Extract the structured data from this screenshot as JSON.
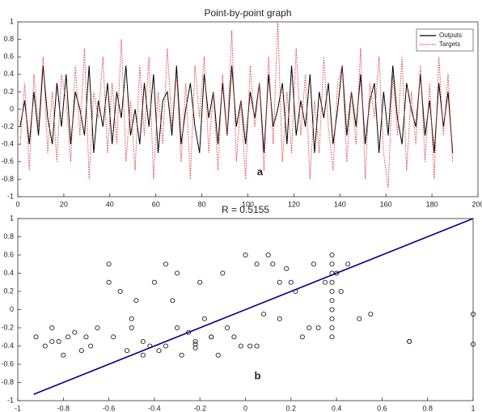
{
  "chart_data": [
    {
      "type": "line",
      "title": "Point-by-point graph",
      "x": [
        1,
        3,
        5,
        7,
        9,
        11,
        13,
        15,
        17,
        19,
        21,
        23,
        25,
        27,
        29,
        31,
        33,
        35,
        37,
        39,
        41,
        43,
        45,
        47,
        49,
        51,
        53,
        55,
        57,
        59,
        61,
        63,
        65,
        67,
        69,
        71,
        73,
        75,
        77,
        79,
        81,
        83,
        85,
        87,
        89,
        91,
        93,
        95,
        97,
        99,
        101,
        103,
        105,
        107,
        109,
        111,
        113,
        115,
        117,
        119,
        121,
        123,
        125,
        127,
        129,
        131,
        133,
        135,
        137,
        139,
        141,
        143,
        145,
        147,
        149,
        151,
        153,
        155,
        157,
        159,
        161,
        163,
        165,
        167,
        169,
        171,
        173,
        175,
        177,
        179,
        181,
        183,
        185,
        187,
        189
      ],
      "series": [
        {
          "name": "Outputs",
          "color": "#000000",
          "dash": "none",
          "values": [
            -0.2,
            0.1,
            -0.4,
            0.2,
            -0.3,
            0.5,
            -0.1,
            -0.4,
            0.3,
            -0.2,
            0.4,
            -0.4,
            0.2,
            0,
            -0.3,
            0.5,
            -0.5,
            0.1,
            -0.2,
            0.3,
            -0.4,
            0.2,
            -0.1,
            0.5,
            -0.3,
            0,
            -0.4,
            0.3,
            -0.2,
            0.4,
            -0.5,
            0.1,
            0.2,
            -0.3,
            0.5,
            -0.4,
            0,
            0.3,
            -0.2,
            -0.5,
            0.4,
            -0.1,
            0.2,
            -0.4,
            0.3,
            -0.3,
            0.5,
            -0.2,
            0.1,
            -0.4,
            0.2,
            -0.1,
            0.3,
            -0.5,
            0.4,
            -0.2,
            0,
            0.3,
            -0.4,
            0.5,
            -0.3,
            0.1,
            -0.2,
            0.4,
            -0.5,
            0.2,
            -0.1,
            0.3,
            -0.4,
            0,
            0.5,
            -0.3,
            0.2,
            -0.2,
            0.4,
            -0.4,
            0.1,
            0.3,
            -0.5,
            0.2,
            -0.3,
            0.5,
            -0.1,
            -0.4,
            0.3,
            0,
            -0.2,
            0.4,
            -0.3,
            0.1,
            -0.5,
            0.3,
            -0.2,
            0.2,
            -0.5
          ]
        },
        {
          "name": "Targets",
          "color": "#e04040",
          "dash": "1.5 1.5",
          "values": [
            -0.4,
            0.3,
            -0.7,
            0.4,
            -0.2,
            0.6,
            -0.5,
            0.2,
            -0.6,
            0.4,
            0.1,
            -0.6,
            0.5,
            -0.3,
            0.7,
            -0.8,
            0.2,
            -0.1,
            0.6,
            -0.5,
            0.3,
            -0.4,
            0.8,
            -0.6,
            0.1,
            -0.7,
            0.5,
            -0.3,
            0.6,
            -0.8,
            0.2,
            -0.4,
            0.7,
            -0.2,
            0.4,
            -0.6,
            0.3,
            -0.8,
            0.5,
            -0.1,
            0.6,
            -0.5,
            0.2,
            -0.7,
            0.4,
            -0.3,
            0.9,
            -0.6,
            0.1,
            -0.8,
            0.5,
            -0.2,
            0.3,
            -0.7,
            0.6,
            -0.4,
            1,
            -0.6,
            0.2,
            -0.5,
            0.7,
            -0.3,
            0.4,
            -0.8,
            0.1,
            -0.5,
            0.6,
            -0.2,
            -0.7,
            0.3,
            0.5,
            -0.6,
            0.2,
            -0.4,
            0.7,
            -0.8,
            0.3,
            -0.1,
            0.6,
            -0.5,
            -0.9,
            0.4,
            -0.3,
            0.6,
            -0.7,
            0.2,
            -0.4,
            0.5,
            -0.6,
            0.3,
            -0.8,
            0.6,
            -0.3,
            0.4,
            -0.6
          ]
        }
      ],
      "xlim": [
        0,
        200
      ],
      "ylim": [
        -1,
        1
      ],
      "xticks": [
        0,
        20,
        40,
        60,
        80,
        100,
        120,
        140,
        160,
        180,
        200
      ],
      "yticks": [
        -1,
        -0.8,
        -0.6,
        -0.4,
        -0.2,
        0,
        0.2,
        0.4,
        0.6,
        0.8,
        1
      ],
      "legend": "upper right",
      "annotation": "a"
    },
    {
      "type": "scatter",
      "title": "R = 0.5155",
      "x": [
        -0.92,
        -0.88,
        -0.85,
        -0.82,
        -0.8,
        -0.78,
        -0.75,
        -0.72,
        -0.7,
        -0.68,
        -0.65,
        -0.6,
        -0.58,
        -0.55,
        -0.52,
        -0.5,
        -0.48,
        -0.45,
        -0.42,
        -0.4,
        -0.38,
        -0.35,
        -0.32,
        -0.3,
        -0.28,
        -0.25,
        -0.22,
        -0.22,
        -0.22,
        -0.2,
        -0.18,
        -0.15,
        -0.12,
        -0.1,
        -0.08,
        -0.05,
        -0.02,
        0,
        0.02,
        0.05,
        0.08,
        0.1,
        0.12,
        0.15,
        0.18,
        0.2,
        0.22,
        0.25,
        0.28,
        0.3,
        0.32,
        0.35,
        0.38,
        0.38,
        0.38,
        0.38,
        0.38,
        0.38,
        0.38,
        0.38,
        0.38,
        0.38,
        0.4,
        0.42,
        0.45,
        0.5,
        0.55,
        0.72,
        0.72,
        1,
        1,
        -0.6,
        -0.45,
        -0.3,
        -0.15,
        0.05,
        -0.85,
        -0.5,
        -0.35,
        0.15
      ],
      "values": [
        -0.3,
        -0.4,
        -0.2,
        -0.35,
        -0.5,
        -0.3,
        -0.25,
        -0.45,
        -0.3,
        -0.4,
        -0.2,
        0.5,
        -0.3,
        0.2,
        -0.45,
        -0.1,
        0.1,
        -0.35,
        -0.4,
        0.3,
        -0.45,
        -0.4,
        0.1,
        -0.2,
        -0.5,
        -0.25,
        -0.35,
        -0.38,
        -0.42,
        0.3,
        -0.1,
        -0.3,
        -0.5,
        0.4,
        -0.2,
        -0.3,
        -0.4,
        0.6,
        -0.4,
        0.5,
        -0.05,
        0.6,
        0.5,
        -0.1,
        0.45,
        0.3,
        0.2,
        -0.3,
        -0.2,
        0.5,
        -0.2,
        0.3,
        0.6,
        0.5,
        0.4,
        0.3,
        0.2,
        0.1,
        0,
        -0.1,
        -0.2,
        -0.3,
        0.4,
        0.2,
        0.5,
        -0.1,
        -0.05,
        -0.35,
        -0.35,
        -0.05,
        -0.38,
        0.3,
        -0.5,
        0.4,
        -0.3,
        -0.4,
        -0.35,
        -0.2,
        0.5,
        0.3
      ],
      "color": "#222222",
      "fit": {
        "x": [
          -0.93,
          1
        ],
        "values": [
          -0.93,
          1
        ],
        "color": "#00008b"
      },
      "xlim": [
        -1,
        1
      ],
      "ylim": [
        -1,
        1
      ],
      "xticks": [
        -1,
        -0.8,
        -0.6,
        -0.4,
        -0.2,
        0,
        0.2,
        0.4,
        0.6,
        0.8,
        1
      ],
      "yticks": [
        -1,
        -0.8,
        -0.6,
        -0.4,
        -0.2,
        0,
        0.2,
        0.4,
        0.6,
        0.8,
        1
      ],
      "annotation": "b"
    }
  ]
}
